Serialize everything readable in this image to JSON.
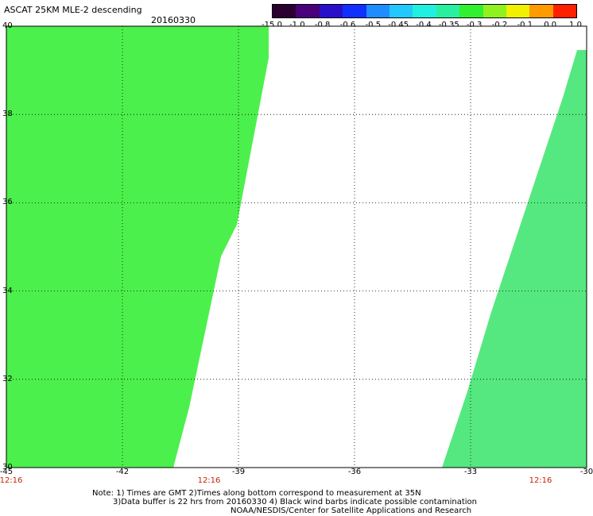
{
  "header": {
    "title": "ASCAT 25KM MLE-2 descending",
    "date": "20160330"
  },
  "colorbar": {
    "labels": [
      "-15.0",
      "-1.0",
      "-0.8",
      "-0.6",
      "-0.5",
      "-0.45",
      "-0.4",
      "-0.35",
      "-0.3",
      "-0.2",
      "-0.1",
      "0.0",
      "1.0"
    ],
    "colors": [
      "#2a0030",
      "#4a007a",
      "#2a10c8",
      "#1030ff",
      "#1f8cff",
      "#22c8ff",
      "#20f0e0",
      "#28f0a0",
      "#30f030",
      "#90f020",
      "#f0f000",
      "#ff9a00",
      "#ff2000"
    ]
  },
  "map": {
    "lon_range": [
      -45,
      -30
    ],
    "lat_range": [
      30,
      40
    ],
    "x_ticks": [
      "-45",
      "-42",
      "-39",
      "-36",
      "-33",
      "-30"
    ],
    "y_ticks": [
      "40",
      "38",
      "36",
      "34",
      "32",
      "30"
    ],
    "time_labels": [
      "12:16",
      "12:16",
      "12:16"
    ],
    "left_swath_color": "#4cf04c",
    "right_swath_color": "#55e880"
  },
  "notes": [
    "Note: 1) Times are GMT 2)Times along bottom correspond to measurement at 35N",
    "3)Data buffer is 22 hrs from 20160330 4) Black wind barbs indicate possible contamination",
    "NOAA/NESDIS/Center for Satellite Applications and Research"
  ]
}
